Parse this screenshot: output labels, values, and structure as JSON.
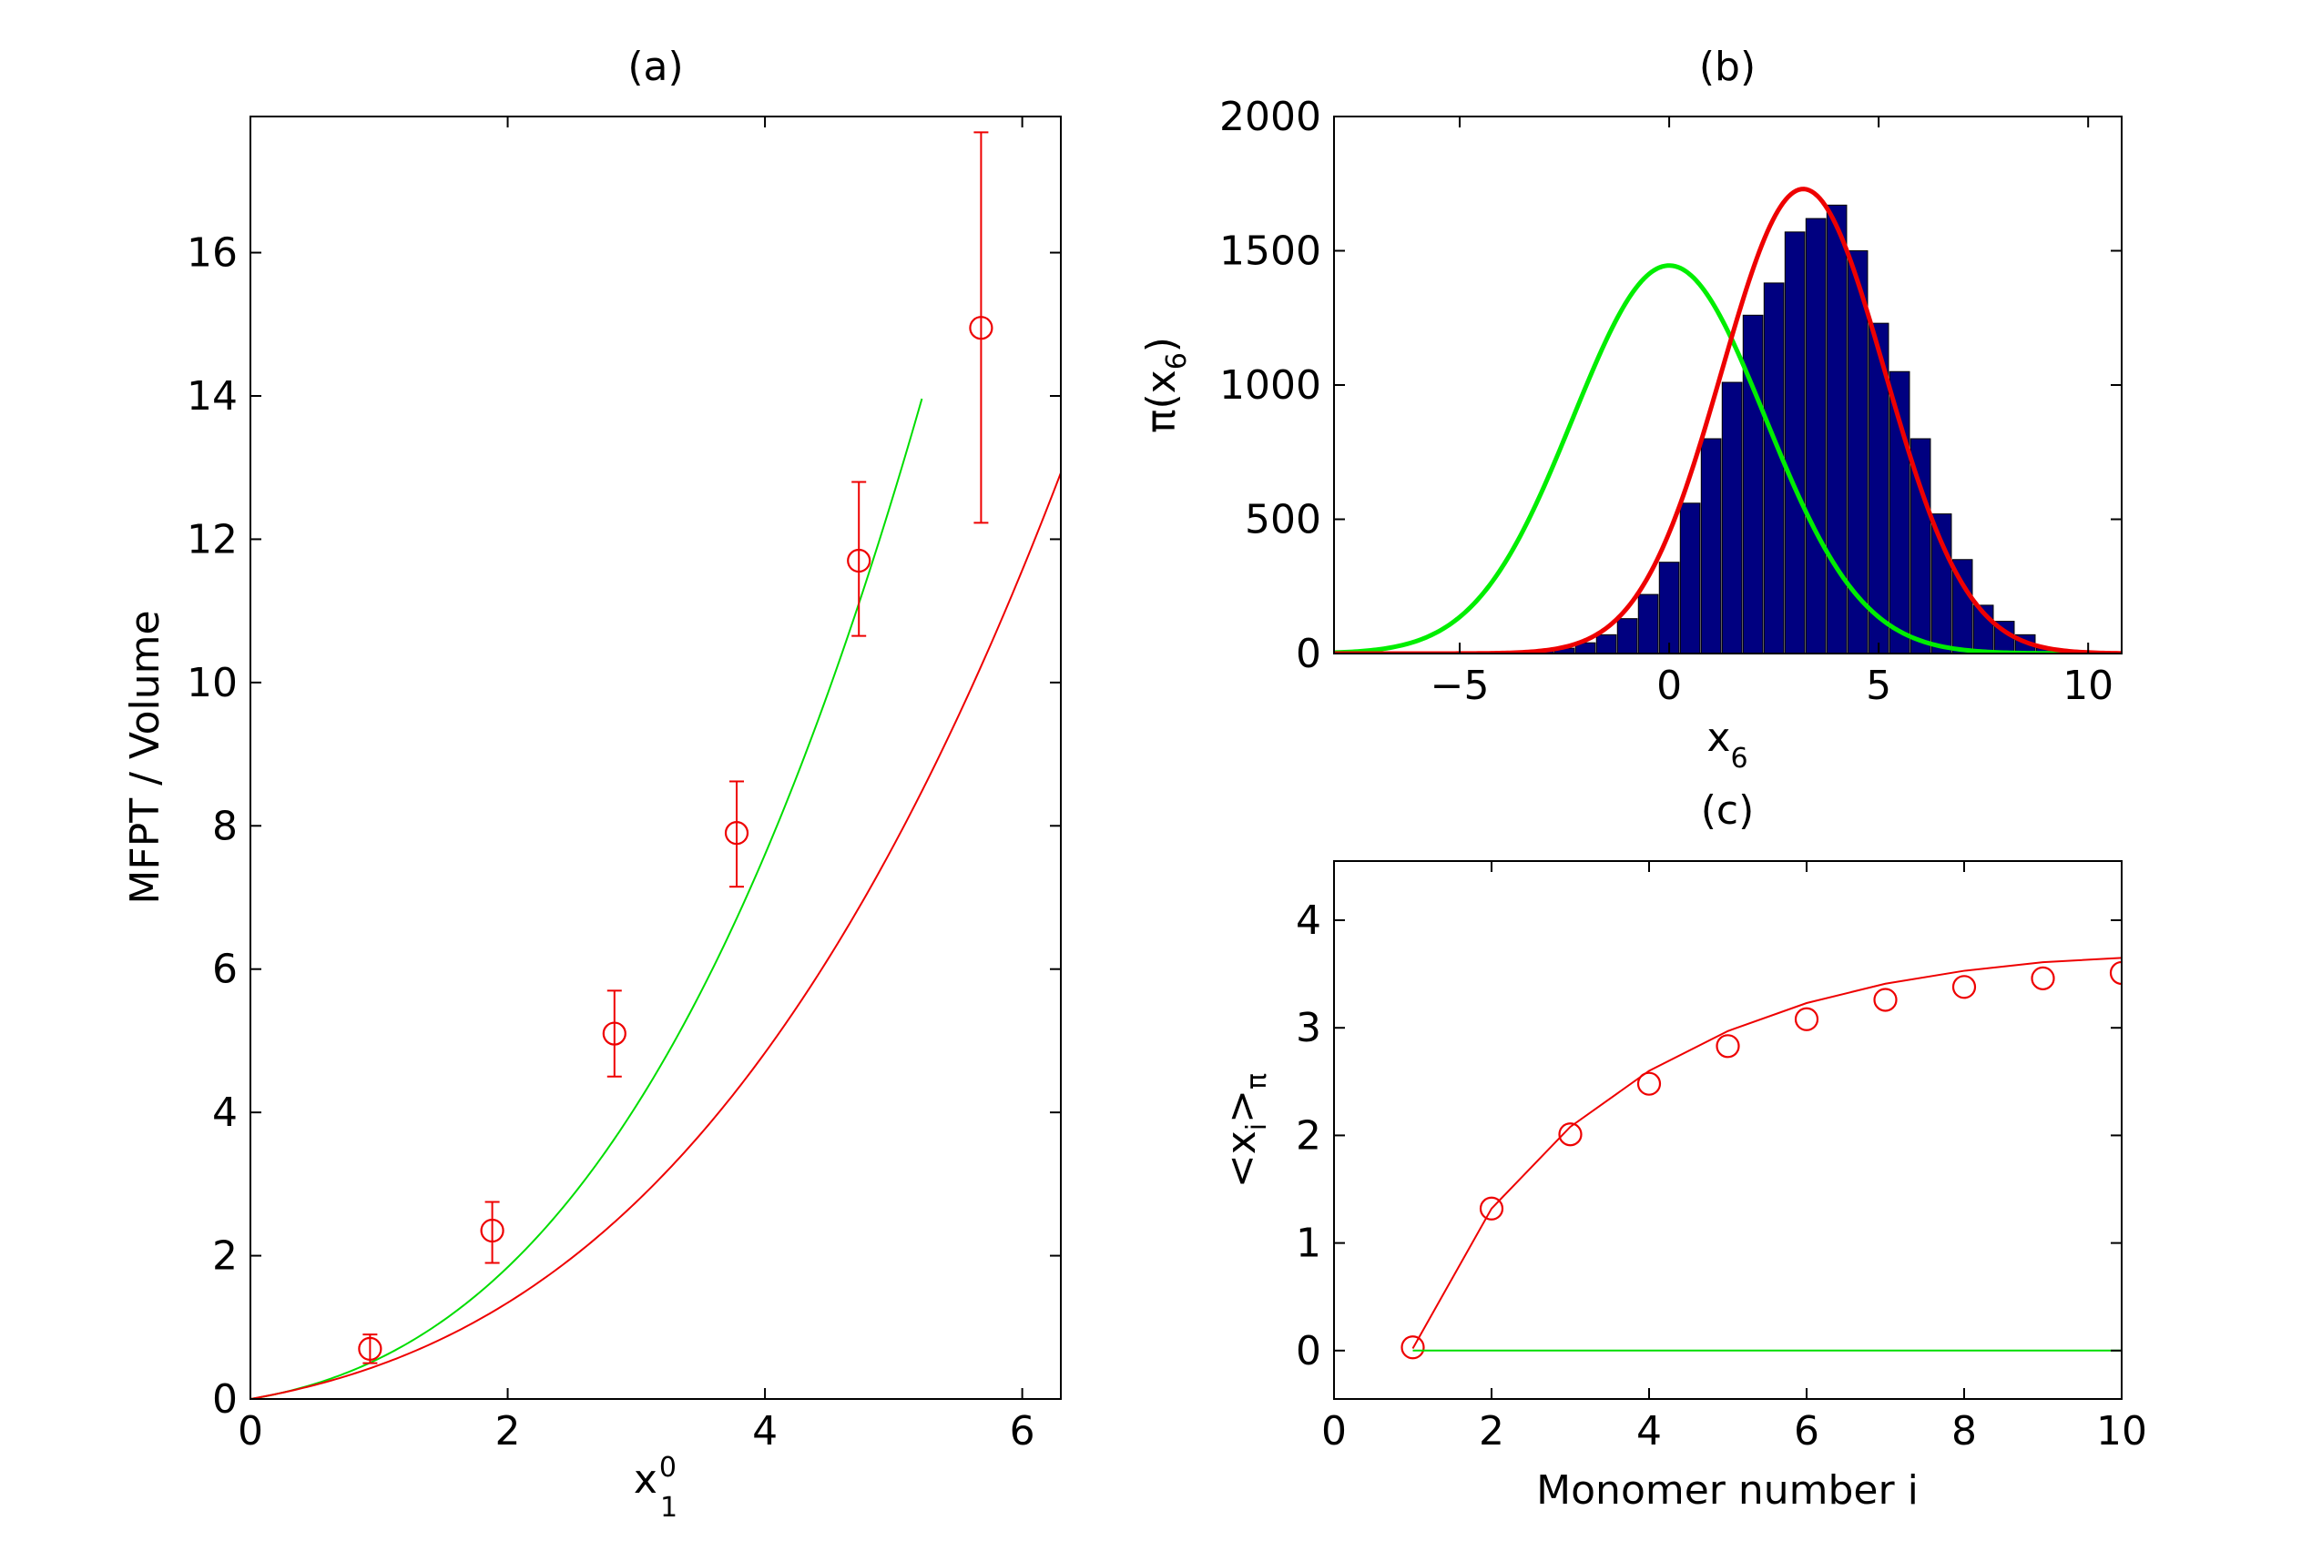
{
  "chart_data": [
    {
      "id": "a",
      "type": "line",
      "title": "(a)",
      "xlabel": {
        "base": "x",
        "sub": "1",
        "sup": "0"
      },
      "ylabel": "MFPT / Volume",
      "xlim": [
        0,
        6.3
      ],
      "ylim": [
        0,
        17.9
      ],
      "xticks": [
        0,
        2,
        4,
        6
      ],
      "yticks": [
        0,
        2,
        4,
        6,
        8,
        10,
        12,
        14,
        16
      ],
      "series": [
        {
          "name": "green-curve",
          "color": "#00dd00",
          "coef": [
            0.3,
            0.22,
            0.45
          ],
          "x_range": [
            0,
            5.22
          ]
        },
        {
          "name": "red-curve",
          "color": "#ee0000",
          "coef": [
            0.32,
            0.13,
            0.23
          ],
          "x_range": [
            0,
            6.3
          ]
        },
        {
          "name": "red-markers",
          "color": "#ee0000",
          "x": [
            0.93,
            1.88,
            2.83,
            3.78,
            4.73,
            5.68
          ],
          "y": [
            0.7,
            2.35,
            5.1,
            7.9,
            11.7,
            14.95
          ],
          "err_low": [
            0.2,
            0.45,
            0.6,
            0.75,
            1.05,
            2.72
          ],
          "err_high": [
            0.2,
            0.4,
            0.6,
            0.72,
            1.1,
            2.73
          ]
        }
      ]
    },
    {
      "id": "b",
      "type": "bar",
      "title": "(b)",
      "xlabel": {
        "base": "x",
        "sub": "6"
      },
      "ylabel": {
        "prefix": "π(x",
        "sub": "6",
        "suffix": ")"
      },
      "xlim": [
        -8,
        10.8
      ],
      "ylim": [
        0,
        2000
      ],
      "xticks": [
        -5,
        0,
        5,
        10
      ],
      "yticks": [
        0,
        500,
        1000,
        1500,
        2000
      ],
      "bar_color": "#000080",
      "bar_width": 0.47,
      "bins": [
        -3.0,
        -2.5,
        -2.0,
        -1.5,
        -1.0,
        -0.5,
        0.0,
        0.5,
        1.0,
        1.5,
        2.0,
        2.5,
        3.0,
        3.5,
        4.0,
        4.5,
        5.0,
        5.5,
        6.0,
        6.5,
        7.0,
        7.5,
        8.0,
        8.5,
        9.0,
        9.5
      ],
      "counts": [
        10,
        20,
        40,
        70,
        130,
        220,
        340,
        560,
        800,
        1010,
        1260,
        1380,
        1570,
        1620,
        1670,
        1500,
        1230,
        1050,
        800,
        520,
        350,
        180,
        120,
        70,
        20,
        10
      ],
      "series": [
        {
          "name": "green-gaussian",
          "color": "#00ee00",
          "mu": 0.0,
          "sigma": 2.3,
          "amp": 1445
        },
        {
          "name": "red-gaussian",
          "color": "#ee0000",
          "mu": 3.2,
          "sigma": 1.95,
          "amp": 1730
        }
      ]
    },
    {
      "id": "c",
      "type": "line",
      "title": "(c)",
      "xlabel": "Monomer number i",
      "ylabel": {
        "prefix": "<x",
        "sub_i": "i",
        "mid": ">",
        "sub_pi": "π"
      },
      "xlim": [
        0,
        10
      ],
      "ylim": [
        -0.45,
        4.55
      ],
      "xticks": [
        0,
        2,
        4,
        6,
        8,
        10
      ],
      "yticks": [
        0,
        1,
        2,
        3,
        4
      ],
      "series": [
        {
          "name": "red-line",
          "color": "#ee0000",
          "x": [
            1,
            2,
            3,
            4,
            5,
            6,
            7,
            8,
            9,
            10
          ],
          "y": [
            0.02,
            1.32,
            2.08,
            2.6,
            2.97,
            3.23,
            3.41,
            3.53,
            3.61,
            3.65
          ]
        },
        {
          "name": "red-markers",
          "color": "#ee0000",
          "x": [
            1,
            2,
            3,
            4,
            5,
            6,
            7,
            8,
            9,
            10
          ],
          "y": [
            0.03,
            1.32,
            2.01,
            2.48,
            2.83,
            3.08,
            3.26,
            3.38,
            3.46,
            3.51
          ]
        },
        {
          "name": "green-line",
          "color": "#00dd00",
          "x": [
            1,
            10
          ],
          "y": [
            0,
            0
          ]
        }
      ]
    }
  ]
}
